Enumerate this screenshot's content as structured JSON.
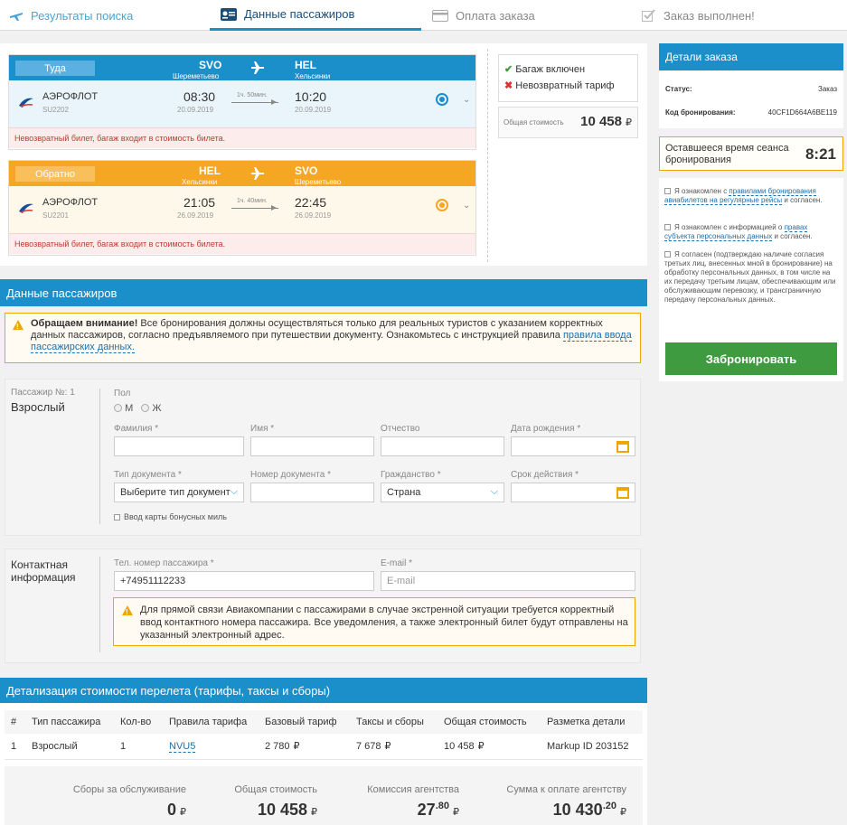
{
  "nav": {
    "step1": "Результаты поиска",
    "step2": "Данные пассажиров",
    "step3": "Оплата заказа",
    "step4": "Заказ выполнен!"
  },
  "outbound": {
    "direction": "Туда",
    "from_code": "SVO",
    "from_city": "Шереметьево",
    "to_code": "HEL",
    "to_city": "Хельсинки",
    "airline": "АЭРОФЛОТ",
    "flight": "SU2202",
    "dep_time": "08:30",
    "dep_date": "20.09.2019",
    "duration": "1ч. 50мин.",
    "arr_time": "10:20",
    "arr_date": "20.09.2019",
    "warning": "Невозвратный билет, багаж входит в стоимость билета."
  },
  "inbound": {
    "direction": "Обратно",
    "from_code": "HEL",
    "from_city": "Хельсинки",
    "to_code": "SVO",
    "to_city": "Шереметьево",
    "airline": "АЭРОФЛОТ",
    "flight": "SU2201",
    "dep_time": "21:05",
    "dep_date": "26.09.2019",
    "duration": "1ч. 40мин.",
    "arr_time": "22:45",
    "arr_date": "26.09.2019",
    "warning": "Невозвратный билет, багаж входит в стоимость билета."
  },
  "summary": {
    "baggage": "Багаж включен",
    "nonrefund": "Невозвратный тариф",
    "total_label": "Общая стоимость",
    "total_value": "10 458",
    "currency": "₽"
  },
  "order": {
    "title": "Детали заказа",
    "status_label": "Статус:",
    "status_value": "Заказ",
    "code_label": "Код бронирования:",
    "code_value": "40CF1D664A6BE119",
    "timer_label": "Оставшееся время сеанса бронирования",
    "timer_value": "8:21",
    "agree1_a": "Я ознакомлен с ",
    "agree1_link": "правилами бронирования авиабилетов на регулярные рейсы",
    "agree1_b": " и согласен.",
    "agree2_a": "Я ознакомлен с информацией о ",
    "agree2_link": "правах субъекта персональных данных",
    "agree2_b": " и согласен.",
    "agree3": "Я согласен (подтверждаю наличие согласия третьих лиц, внесенных мной в бронирование) на обработку персональных данных, в том числе на их передачу третьим лицам, обеспечивающим или обслуживающим перевозку, и трансграничную передачу персональных данных.",
    "book_button": "Забронировать"
  },
  "passengers": {
    "title": "Данные пассажиров",
    "notice_bold": "Обращаем внимание!",
    "notice_text": " Все бронирования должны осуществляться только для реальных туристов с указанием корректных данных пассажиров, согласно предъявляемого при путешествии документу. Ознакомьтесь с инструкцией правила ",
    "notice_link": "правила ввода пассажирских данных.",
    "pax_no": "Пассажир №: 1",
    "pax_type": "Взрослый",
    "gender_label": "Пол",
    "gender_m": "М",
    "gender_f": "Ж",
    "surname_label": "Фамилия *",
    "name_label": "Имя *",
    "patronymic_label": "Отчество",
    "birth_label": "Дата рождения *",
    "doctype_label": "Тип документа *",
    "doctype_value": "Выберите тип документ",
    "docno_label": "Номер документа *",
    "citizenship_label": "Гражданство *",
    "citizenship_value": "Страна",
    "expiry_label": "Срок действия *",
    "bonus_label": "Ввод карты бонусных миль"
  },
  "contact": {
    "title": "Контактная информация",
    "phone_label": "Тел. номер пассажира *",
    "phone_value": "+74951112233",
    "email_label": "E-mail *",
    "email_placeholder": "E-mail",
    "notice": "Для прямой связи Авиакомпании с пассажирами в случае экстренной ситуации требуется корректный ввод контактного номера пассажира. Все уведомления, а также электронный билет будут отправлены на указанный электронный адрес."
  },
  "cost": {
    "title": "Детализация стоимости перелета (тарифы, таксы и сборы)",
    "headers": [
      "#",
      "Тип пассажира",
      "Кол-во",
      "Правила тарифа",
      "Базовый тариф",
      "Таксы и сборы",
      "Общая стоимость",
      "Разметка детали"
    ],
    "row": [
      "1",
      "Взрослый",
      "1",
      "NVU5",
      "2 780",
      "7 678",
      "10 458",
      "Markup ID 203152"
    ],
    "currency": "₽",
    "service_label": "Сборы за обслуживание",
    "service_value": "0",
    "total_label": "Общая стоимость",
    "total_value": "10 458",
    "commission_label": "Комиссия агентства",
    "commission_int": "27",
    "commission_frac": ".80",
    "pay_label": "Сумма к оплате агентству",
    "pay_int": "10 430",
    "pay_frac": ".20"
  },
  "colors": {
    "accent": "#1a8fca",
    "outbound": "#1a8fca",
    "inbound": "#f5a623",
    "book": "#3f9b3f"
  }
}
